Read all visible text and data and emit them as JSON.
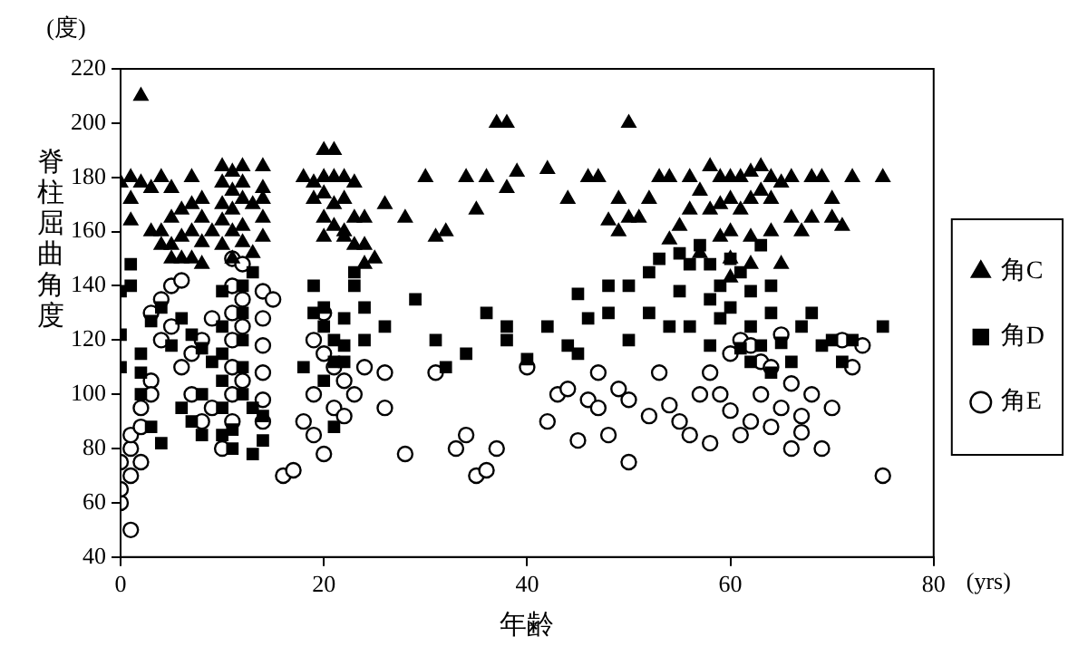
{
  "chart_data": {
    "type": "scatter",
    "xlabel": "年齢",
    "ylabel": "脊柱屈曲角度",
    "annotations": [
      "(度)",
      "(yrs)"
    ],
    "xlim": [
      0,
      80
    ],
    "xticks": [
      0,
      20,
      40,
      60,
      80
    ],
    "ylim": [
      40,
      220
    ],
    "yticks": [
      40,
      60,
      80,
      100,
      120,
      140,
      160,
      180,
      200,
      220
    ],
    "grid": false,
    "legend": "right",
    "series": [
      {
        "name": "角C",
        "color": "#000000",
        "marker": "triangle",
        "x": [
          0,
          1,
          2,
          2,
          3,
          1,
          1,
          4,
          5,
          7,
          3,
          4,
          5,
          6,
          7,
          4,
          5,
          6,
          7,
          8,
          5,
          6,
          7,
          8,
          9,
          8,
          8,
          10,
          11,
          12,
          14,
          10,
          11,
          12,
          10,
          11,
          12,
          13,
          10,
          11,
          12,
          14,
          10,
          11,
          12,
          13,
          14,
          14,
          14,
          20,
          21,
          18,
          19,
          20,
          21,
          22,
          23,
          19,
          20,
          21,
          22,
          20,
          21,
          22,
          23,
          20,
          22,
          23,
          24,
          25,
          24,
          26,
          28,
          24,
          30,
          31,
          32,
          34,
          36,
          35,
          37,
          38,
          38,
          39,
          42,
          44,
          46,
          47,
          48,
          49,
          49,
          50,
          50,
          51,
          52,
          53,
          54,
          56,
          57,
          55,
          56,
          54,
          57,
          58,
          59,
          60,
          61,
          62,
          63,
          64,
          65,
          66,
          68,
          69,
          70,
          72,
          75,
          58,
          59,
          60,
          61,
          62,
          63,
          64,
          66,
          68,
          70,
          59,
          60,
          62,
          64,
          67,
          71,
          60,
          65,
          60,
          62
        ],
        "values": [
          178,
          180,
          210,
          178,
          176,
          164,
          172,
          180,
          176,
          180,
          160,
          160,
          165,
          168,
          170,
          155,
          155,
          158,
          160,
          156,
          150,
          150,
          150,
          148,
          160,
          165,
          172,
          184,
          182,
          184,
          184,
          178,
          175,
          178,
          170,
          168,
          172,
          170,
          164,
          160,
          162,
          165,
          155,
          150,
          156,
          152,
          158,
          176,
          172,
          190,
          190,
          180,
          178,
          180,
          180,
          180,
          178,
          172,
          174,
          170,
          172,
          165,
          162,
          160,
          165,
          158,
          158,
          155,
          155,
          150,
          148,
          170,
          165,
          165,
          180,
          158,
          160,
          180,
          180,
          168,
          200,
          200,
          176,
          182,
          183,
          172,
          180,
          180,
          164,
          172,
          160,
          165,
          200,
          165,
          172,
          180,
          180,
          180,
          175,
          162,
          168,
          157,
          152,
          184,
          180,
          180,
          180,
          182,
          184,
          180,
          178,
          180,
          180,
          180,
          172,
          180,
          180,
          168,
          170,
          172,
          168,
          172,
          175,
          172,
          165,
          165,
          165,
          158,
          160,
          158,
          160,
          160,
          162,
          150,
          148,
          143,
          148
        ]
      },
      {
        "name": "角D",
        "color": "#000000",
        "marker": "square",
        "x": [
          0,
          0,
          0,
          1,
          1,
          2,
          2,
          2,
          3,
          4,
          3,
          4,
          5,
          6,
          7,
          8,
          9,
          6,
          7,
          8,
          8,
          10,
          10,
          10,
          10,
          10,
          11,
          10,
          11,
          12,
          12,
          12,
          12,
          12,
          13,
          14,
          14,
          13,
          13,
          18,
          19,
          20,
          20,
          21,
          21,
          22,
          22,
          23,
          24,
          24,
          20,
          21,
          22,
          23,
          19,
          26,
          29,
          31,
          32,
          34,
          36,
          38,
          38,
          40,
          45,
          48,
          45,
          50,
          52,
          54,
          55,
          50,
          52,
          53,
          55,
          56,
          48,
          46,
          44,
          42,
          57,
          58,
          58,
          59,
          59,
          60,
          60,
          61,
          61,
          62,
          62,
          63,
          63,
          64,
          64,
          65,
          66,
          67,
          68,
          69,
          70,
          71,
          72,
          75,
          62,
          64,
          58,
          56
        ],
        "values": [
          138,
          122,
          110,
          148,
          140,
          100,
          115,
          108,
          88,
          82,
          127,
          132,
          118,
          128,
          122,
          117,
          112,
          95,
          90,
          85,
          100,
          138,
          125,
          115,
          105,
          95,
          87,
          85,
          80,
          140,
          130,
          120,
          110,
          100,
          95,
          92,
          83,
          145,
          78,
          110,
          140,
          132,
          125,
          120,
          112,
          118,
          128,
          140,
          132,
          120,
          105,
          88,
          112,
          145,
          130,
          125,
          135,
          120,
          110,
          115,
          130,
          120,
          125,
          113,
          115,
          140,
          137,
          140,
          130,
          125,
          138,
          120,
          145,
          150,
          152,
          148,
          130,
          128,
          118,
          125,
          155,
          148,
          135,
          140,
          128,
          150,
          132,
          145,
          117,
          138,
          125,
          155,
          118,
          140,
          130,
          119,
          112,
          125,
          130,
          118,
          120,
          112,
          120,
          125,
          112,
          108,
          118,
          125
        ]
      },
      {
        "name": "角E",
        "color": "#000000",
        "marker": "circle",
        "x": [
          0,
          1,
          0,
          1,
          0,
          1,
          1,
          2,
          2,
          3,
          3,
          2,
          3,
          4,
          4,
          5,
          5,
          6,
          6,
          7,
          7,
          8,
          8,
          9,
          9,
          11,
          11,
          11,
          11,
          11,
          11,
          11,
          10,
          12,
          12,
          12,
          12,
          14,
          14,
          14,
          14,
          14,
          14,
          15,
          16,
          17,
          18,
          19,
          19,
          19,
          20,
          20,
          20,
          21,
          21,
          22,
          22,
          23,
          24,
          26,
          26,
          28,
          31,
          33,
          34,
          35,
          36,
          37,
          40,
          42,
          43,
          44,
          46,
          47,
          48,
          45,
          50,
          50,
          52,
          54,
          55,
          56,
          57,
          58,
          59,
          60,
          60,
          61,
          62,
          63,
          63,
          64,
          65,
          65,
          66,
          67,
          68,
          69,
          70,
          71,
          72,
          73,
          75,
          58,
          61,
          62,
          64,
          66,
          67,
          53,
          49,
          47
        ],
        "values": [
          60,
          50,
          65,
          70,
          75,
          80,
          85,
          88,
          95,
          105,
          100,
          75,
          130,
          135,
          120,
          125,
          140,
          142,
          110,
          100,
          115,
          120,
          90,
          128,
          95,
          150,
          140,
          130,
          120,
          110,
          100,
          90,
          80,
          148,
          135,
          125,
          105,
          138,
          128,
          118,
          108,
          98,
          90,
          135,
          70,
          72,
          90,
          120,
          100,
          85,
          130,
          115,
          78,
          110,
          95,
          105,
          92,
          100,
          110,
          108,
          95,
          78,
          108,
          80,
          85,
          70,
          72,
          80,
          110,
          90,
          100,
          102,
          98,
          95,
          85,
          83,
          98,
          75,
          92,
          96,
          90,
          85,
          100,
          108,
          100,
          94,
          115,
          120,
          118,
          112,
          100,
          110,
          122,
          95,
          104,
          92,
          100,
          80,
          95,
          120,
          110,
          118,
          70,
          82,
          85,
          90,
          88,
          80,
          86,
          108,
          102,
          108
        ]
      }
    ]
  }
}
